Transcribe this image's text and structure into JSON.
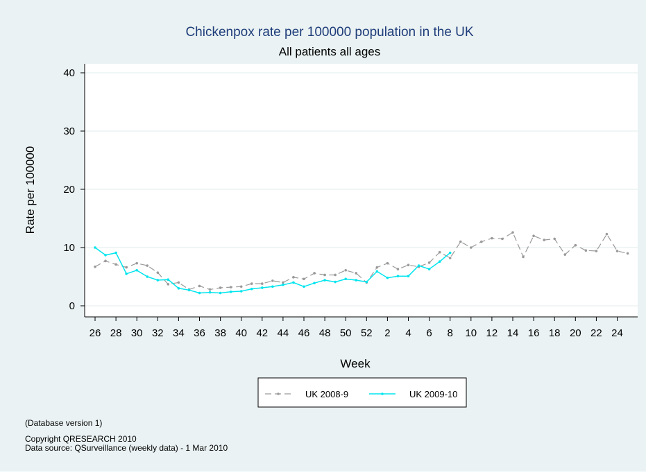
{
  "chart_data": {
    "type": "line",
    "title": "Chickenpox rate per 100000 population in the UK",
    "subtitle": "All patients all ages",
    "xlabel": "Week",
    "ylabel": "Rate per 100000",
    "ylim": [
      0,
      40
    ],
    "yticks": [
      0,
      10,
      20,
      30,
      40
    ],
    "grid": true,
    "legend_position": "bottom",
    "x_weeks": [
      26,
      27,
      28,
      29,
      30,
      31,
      32,
      33,
      34,
      35,
      36,
      37,
      38,
      39,
      40,
      41,
      42,
      43,
      44,
      45,
      46,
      47,
      48,
      49,
      50,
      51,
      52,
      1,
      2,
      3,
      4,
      5,
      6,
      7,
      8,
      9,
      10,
      11,
      12,
      13,
      14,
      15,
      16,
      17,
      18,
      19,
      20,
      21,
      22,
      23,
      24,
      25
    ],
    "x_tick_labels": [
      "26",
      "28",
      "30",
      "32",
      "34",
      "36",
      "38",
      "40",
      "42",
      "44",
      "46",
      "48",
      "50",
      "52",
      "2",
      "4",
      "6",
      "8",
      "10",
      "12",
      "14",
      "16",
      "18",
      "20",
      "22",
      "24"
    ],
    "series": [
      {
        "name": "UK 2008-9",
        "color": "#9a9a9a",
        "dash": true,
        "values": [
          6.7,
          7.7,
          7.1,
          6.6,
          7.3,
          6.9,
          5.7,
          3.7,
          4.0,
          2.8,
          3.4,
          2.8,
          3.1,
          3.2,
          3.3,
          3.8,
          3.8,
          4.3,
          4.0,
          4.9,
          4.6,
          5.6,
          5.3,
          5.3,
          6.1,
          5.6,
          4.0,
          6.6,
          7.3,
          6.3,
          7.0,
          6.7,
          7.4,
          9.2,
          8.2,
          11.0,
          10.0,
          11.0,
          11.6,
          11.5,
          12.6,
          8.4,
          12.0,
          11.3,
          11.5,
          8.8,
          10.4,
          9.5,
          9.4,
          12.3,
          9.4,
          9.0
        ]
      },
      {
        "name": "UK 2009-10",
        "color": "#00e5ee",
        "dash": false,
        "values": [
          10.0,
          8.7,
          9.1,
          5.5,
          6.1,
          5.0,
          4.4,
          4.5,
          3.0,
          2.7,
          2.2,
          2.3,
          2.2,
          2.4,
          2.5,
          2.9,
          3.1,
          3.3,
          3.6,
          4.0,
          3.3,
          3.9,
          4.4,
          4.1,
          4.6,
          4.4,
          4.1,
          5.9,
          4.8,
          5.1,
          5.1,
          6.9,
          6.3,
          7.6,
          9.1
        ]
      }
    ]
  },
  "footer": {
    "db_version": "(Database version 1)",
    "copyright": "Copyright QRESEARCH 2010",
    "source": "Data source: QSurveillance (weekly data) - 1 Mar 2010"
  },
  "colors": {
    "outer_bg": "#eaf2f3",
    "plot_bg": "#ffffff",
    "grid": "#e6efef",
    "title": "#1f3d7a"
  }
}
